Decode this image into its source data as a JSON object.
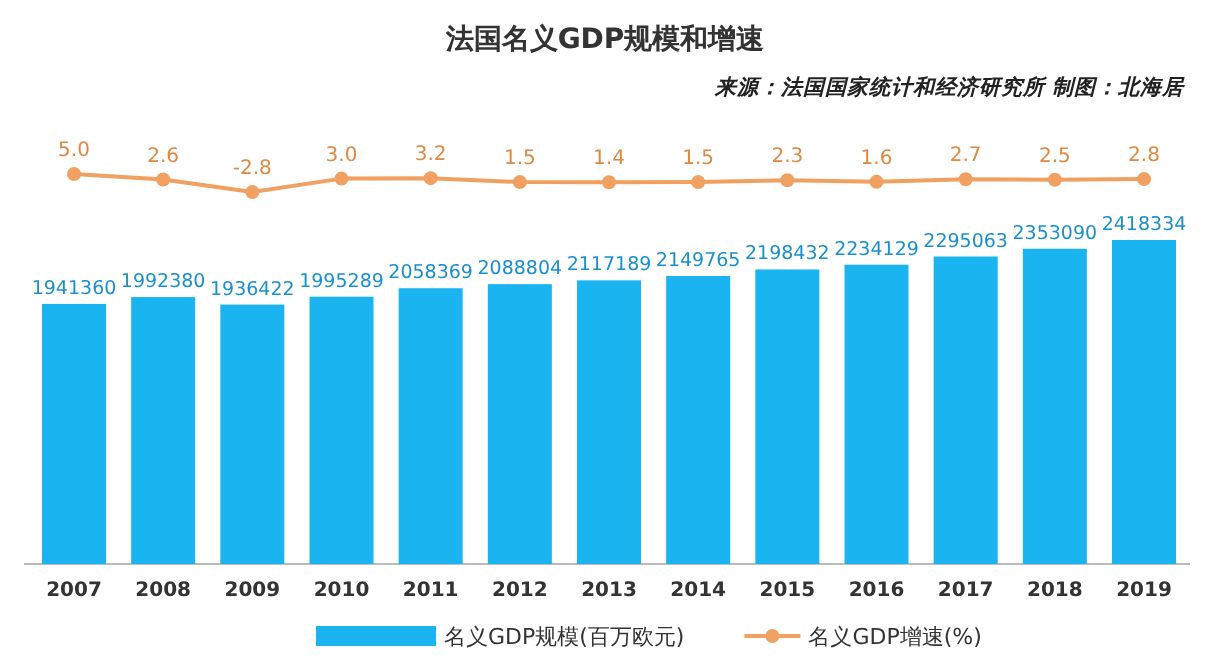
{
  "chart_data": [
    {
      "type": "line",
      "title": "法国名义GDP规模和增速",
      "annotations": [
        "来源：法国国家统计和经济研究所 制图：北海居"
      ],
      "categories": [
        null,
        null,
        null,
        null,
        null,
        null,
        null,
        null,
        null,
        null,
        null,
        null,
        null
      ],
      "marker": "circle",
      "legend": "bottom",
      "series": [
        {
          "name": "名义GDP增速(%)",
          "color": "#f0a060",
          "values": [
            5.0,
            2.6,
            -2.8,
            3.0,
            3.2,
            1.5,
            1.4,
            1.5,
            2.3,
            1.6,
            2.7,
            2.5,
            2.8
          ],
          "value_labels": [
            "5.0",
            "2.6",
            "-2.8",
            "3.0",
            "3.2",
            "1.5",
            "1.4",
            "1.5",
            "2.3",
            "1.6",
            "2.7",
            "2.5",
            "2.8"
          ]
        }
      ]
    },
    {
      "type": "bar",
      "categories": [
        "2007",
        "2008",
        "2009",
        "2010",
        "2011",
        "2012",
        "2013",
        "2014",
        "2015",
        "2016",
        "2017",
        "2018",
        "2019"
      ],
      "data_labels": true,
      "legend": "bottom",
      "series": [
        {
          "name": "名义GDP规模(百万欧元)",
          "color": "#1ab4f0",
          "values": [
            1941360,
            1992380,
            1936422,
            1995289,
            2058369,
            2088804,
            2117189,
            2149765,
            2198432,
            2234129,
            2295063,
            2353090,
            2418334
          ]
        }
      ]
    }
  ]
}
